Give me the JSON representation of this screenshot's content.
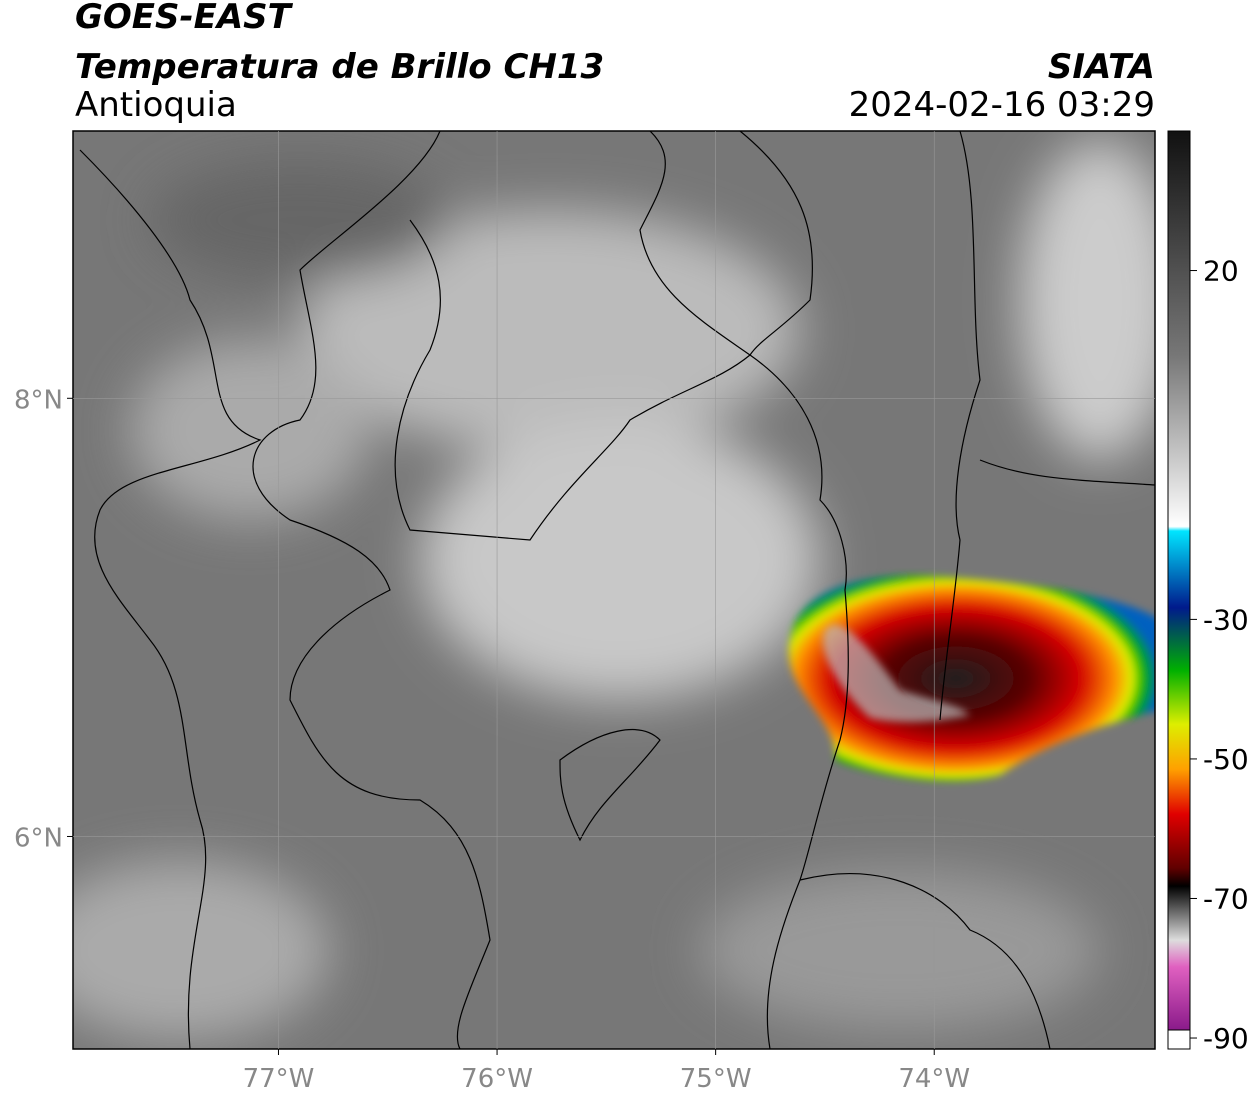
{
  "header": {
    "title": "GOES-EAST",
    "subtitle": "Temperatura de Brillo CH13",
    "region": "Antioquia",
    "source": "SIATA",
    "datetime": "2024-02-16 03:29"
  },
  "map": {
    "lon_lim": [
      -77.94,
      -72.99
    ],
    "lat_lim": [
      5.03,
      9.22
    ],
    "lon_ticks": [
      {
        "value": -77,
        "label": "77°W"
      },
      {
        "value": -76,
        "label": "76°W"
      },
      {
        "value": -75,
        "label": "75°W"
      },
      {
        "value": -74,
        "label": "74°W"
      }
    ],
    "lat_ticks": [
      {
        "value": 8,
        "label": "8°N"
      },
      {
        "value": 6,
        "label": "6°N"
      }
    ],
    "grid": true
  },
  "colorbar": {
    "lim": [
      -91,
      40
    ],
    "ticks": [
      20,
      -30,
      -50,
      -70,
      -90
    ]
  }
}
